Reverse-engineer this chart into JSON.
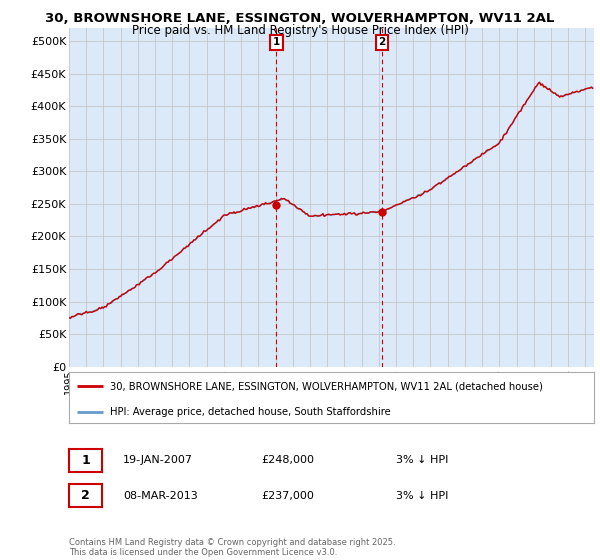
{
  "title_line1": "30, BROWNSHORE LANE, ESSINGTON, WOLVERHAMPTON, WV11 2AL",
  "title_line2": "Price paid vs. HM Land Registry's House Price Index (HPI)",
  "ytick_labels": [
    "£0",
    "£50K",
    "£100K",
    "£150K",
    "£200K",
    "£250K",
    "£300K",
    "£350K",
    "£400K",
    "£450K",
    "£500K"
  ],
  "yticks": [
    0,
    50000,
    100000,
    150000,
    200000,
    250000,
    300000,
    350000,
    400000,
    450000,
    500000
  ],
  "ylim": [
    0,
    520000
  ],
  "xlim_start": 1995,
  "xlim_end": 2025.5,
  "legend_line1": "30, BROWNSHORE LANE, ESSINGTON, WOLVERHAMPTON, WV11 2AL (detached house)",
  "legend_line2": "HPI: Average price, detached house, South Staffordshire",
  "sale1_label": "1",
  "sale1_date": "19-JAN-2007",
  "sale1_price": "£248,000",
  "sale1_note": "3% ↓ HPI",
  "sale1_price_val": 248000,
  "sale1_x": 2007.05,
  "sale2_label": "2",
  "sale2_date": "08-MAR-2013",
  "sale2_price": "£237,000",
  "sale2_note": "3% ↓ HPI",
  "sale2_price_val": 237000,
  "sale2_x": 2013.19,
  "copyright": "Contains HM Land Registry data © Crown copyright and database right 2025.\nThis data is licensed under the Open Government Licence v3.0.",
  "hpi_color": "#6699cc",
  "price_color": "#cc0000",
  "bg_color": "#dce9f8",
  "grid_color": "#c0c0c0",
  "border_color": "#aaaaaa"
}
